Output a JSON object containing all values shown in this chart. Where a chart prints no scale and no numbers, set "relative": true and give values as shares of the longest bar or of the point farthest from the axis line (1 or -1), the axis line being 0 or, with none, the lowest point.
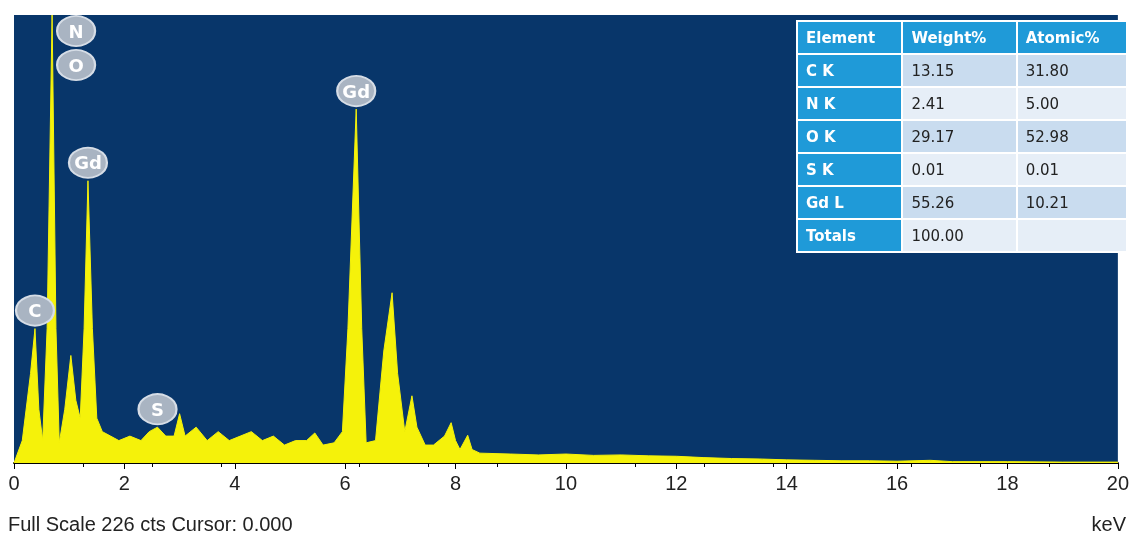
{
  "chart_data": [
    {
      "type": "area",
      "relative": true,
      "color": "#f5f20a",
      "xlabel": "keV",
      "x": [
        0,
        0.15,
        0.3,
        0.38,
        0.45,
        0.52,
        0.6,
        0.69,
        0.76,
        0.82,
        0.92,
        1.03,
        1.12,
        1.2,
        1.27,
        1.34,
        1.42,
        1.5,
        1.6,
        1.75,
        1.9,
        2.1,
        2.3,
        2.45,
        2.6,
        2.75,
        2.9,
        3.0,
        3.1,
        3.3,
        3.5,
        3.7,
        3.9,
        4.1,
        4.3,
        4.5,
        4.7,
        4.9,
        5.1,
        5.3,
        5.45,
        5.6,
        5.8,
        5.95,
        6.05,
        6.2,
        6.3,
        6.38,
        6.55,
        6.7,
        6.85,
        6.95,
        7.08,
        7.21,
        7.3,
        7.45,
        7.6,
        7.8,
        7.92,
        8.0,
        8.08,
        8.22,
        8.3,
        8.44,
        9,
        9.5,
        10,
        10.5,
        11,
        11.5,
        12,
        12.5,
        13,
        13.5,
        14,
        14.5,
        15,
        15.5,
        16,
        16.6,
        17,
        18,
        19,
        20
      ],
      "values": [
        0,
        0.05,
        0.2,
        0.3,
        0.12,
        0.05,
        0.3,
        1.0,
        0.3,
        0.045,
        0.12,
        0.24,
        0.14,
        0.1,
        0.3,
        0.63,
        0.3,
        0.1,
        0.07,
        0.06,
        0.05,
        0.06,
        0.05,
        0.07,
        0.08,
        0.06,
        0.06,
        0.11,
        0.06,
        0.08,
        0.05,
        0.07,
        0.05,
        0.06,
        0.07,
        0.05,
        0.06,
        0.04,
        0.05,
        0.05,
        0.067,
        0.04,
        0.045,
        0.07,
        0.3,
        0.79,
        0.3,
        0.045,
        0.05,
        0.25,
        0.38,
        0.2,
        0.07,
        0.15,
        0.08,
        0.04,
        0.04,
        0.06,
        0.09,
        0.05,
        0.03,
        0.062,
        0.03,
        0.022,
        0.02,
        0.018,
        0.02,
        0.017,
        0.018,
        0.016,
        0.015,
        0.012,
        0.01,
        0.009,
        0.007,
        0.006,
        0.005,
        0.005,
        0.004,
        0.006,
        0.003,
        0.003,
        0.002,
        0.002
      ],
      "xlim": [
        0,
        20
      ],
      "xticks": [
        0,
        2,
        4,
        6,
        8,
        10,
        12,
        14,
        16,
        18,
        20
      ],
      "annotations": [
        {
          "text": "N",
          "x": 0.69,
          "y": 1.0
        },
        {
          "text": "O",
          "x": 0.69,
          "y": 1.0
        },
        {
          "text": "Gd",
          "x": 1.34,
          "y": 0.63
        },
        {
          "text": "Gd",
          "x": 6.2,
          "y": 0.79
        },
        {
          "text": "C",
          "x": 0.38,
          "y": 0.3
        },
        {
          "text": "S",
          "x": 2.6,
          "y": 0.08
        },
        "Full Scale 226 cts Cursor: 0.000"
      ],
      "grid": false
    },
    {
      "type": "other",
      "annotations": [
        "Element",
        "Weight%",
        "Atomic%",
        "C K",
        "13.15",
        "31.80",
        "N K",
        "2.41",
        "5.00",
        "O K",
        "29.17",
        "52.98",
        "S K",
        "0.01",
        "0.01",
        "Gd L",
        "55.26",
        "10.21",
        "Totals",
        "100.00"
      ]
    }
  ]
}
